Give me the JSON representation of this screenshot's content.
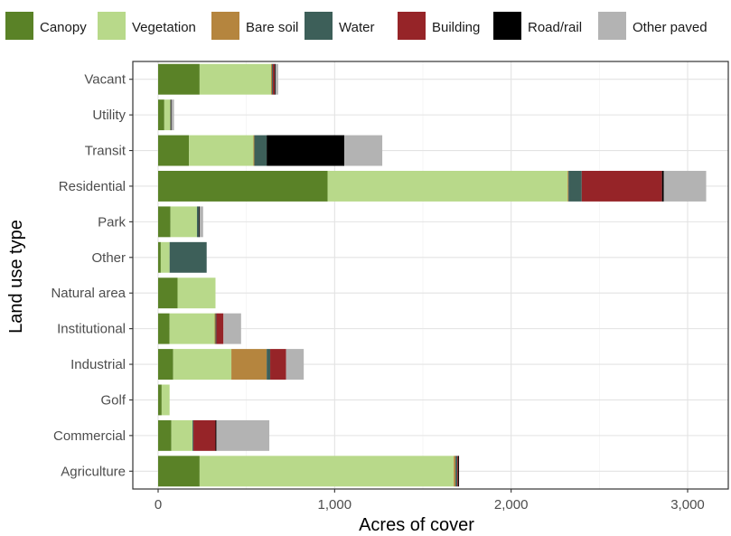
{
  "chart_data": {
    "type": "bar",
    "orientation": "horizontal",
    "stacked": true,
    "xlabel": "Acres of cover",
    "ylabel": "Land use type",
    "xlim": [
      0,
      3200
    ],
    "xticks": [
      0,
      1000,
      2000,
      3000
    ],
    "xtick_labels": [
      "0",
      "1,000",
      "2,000",
      "3,000"
    ],
    "grid": true,
    "legend_position": "top",
    "categories": [
      "Vacant",
      "Utility",
      "Transit",
      "Residential",
      "Park",
      "Other",
      "Natural area",
      "Institutional",
      "Industrial",
      "Golf",
      "Commercial",
      "Agriculture"
    ],
    "series": [
      {
        "name": "Canopy",
        "color": "#5a8227",
        "values": [
          235,
          35,
          175,
          960,
          70,
          15,
          110,
          65,
          85,
          20,
          75,
          235
        ]
      },
      {
        "name": "Vegetation",
        "color": "#b8d98a",
        "values": [
          405,
          35,
          365,
          1360,
          150,
          50,
          215,
          255,
          330,
          45,
          120,
          1440
        ]
      },
      {
        "name": "Bare soil",
        "color": "#b5853e",
        "values": [
          5,
          0,
          5,
          5,
          0,
          0,
          0,
          5,
          200,
          0,
          0,
          10
        ]
      },
      {
        "name": "Water",
        "color": "#3d5f59",
        "values": [
          5,
          0,
          70,
          75,
          10,
          210,
          0,
          5,
          20,
          0,
          5,
          10
        ]
      },
      {
        "name": "Building",
        "color": "#962428",
        "values": [
          10,
          0,
          0,
          455,
          0,
          0,
          0,
          40,
          90,
          0,
          125,
          5
        ]
      },
      {
        "name": "Road/rail",
        "color": "#000000",
        "values": [
          5,
          5,
          440,
          10,
          5,
          0,
          0,
          0,
          0,
          0,
          5,
          5
        ]
      },
      {
        "name": "Other paved",
        "color": "#b3b3b3",
        "values": [
          15,
          15,
          215,
          240,
          20,
          0,
          0,
          100,
          100,
          0,
          300,
          0
        ]
      }
    ]
  }
}
